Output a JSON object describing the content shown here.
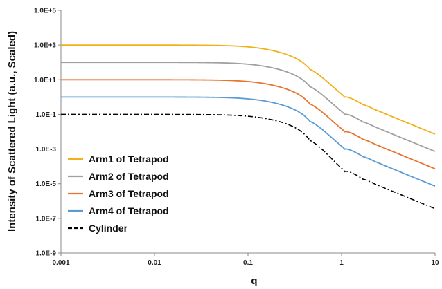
{
  "chart_data": {
    "type": "line",
    "title": "",
    "xlabel": "q",
    "ylabel": "Intensity of Scattered Light (a.u., Scaled)",
    "xscale": "log",
    "yscale": "log",
    "xlim": [
      0.001,
      10
    ],
    "ylim": [
      1e-09,
      100000
    ],
    "grid": false,
    "legend_position": "bottom-left",
    "x_ticks": [
      {
        "value": 0.001,
        "label": "0.001"
      },
      {
        "value": 0.01,
        "label": "0.01"
      },
      {
        "value": 0.1,
        "label": "0.1"
      },
      {
        "value": 1,
        "label": "1"
      },
      {
        "value": 10,
        "label": "10"
      }
    ],
    "y_ticks": [
      {
        "value": 1e-09,
        "label": "1.0E-9"
      },
      {
        "value": 1e-07,
        "label": "1.0E-7"
      },
      {
        "value": 1e-05,
        "label": "1.0E-5"
      },
      {
        "value": 0.001,
        "label": "1.0E-3"
      },
      {
        "value": 0.1,
        "label": "1.0E-1"
      },
      {
        "value": 10,
        "label": "1.0E+1"
      },
      {
        "value": 1000,
        "label": "1.0E+3"
      },
      {
        "value": 100000,
        "label": "1.0E+5"
      }
    ],
    "series": [
      {
        "name": "Arm1 of Tetrapod",
        "color": "#f2b11b",
        "dash": "solid",
        "plateau": 1000,
        "first_min_depth": 1.3
      },
      {
        "name": "Arm2 of Tetrapod",
        "color": "#a0a0a0",
        "dash": "solid",
        "plateau": 100,
        "first_min_depth": 1.3
      },
      {
        "name": "Arm3 of Tetrapod",
        "color": "#e8732c",
        "dash": "solid",
        "plateau": 10,
        "first_min_depth": 1.3
      },
      {
        "name": "Arm4 of Tetrapod",
        "color": "#5b9bd5",
        "dash": "solid",
        "plateau": 1,
        "first_min_depth": 1.3
      },
      {
        "name": "Cylinder",
        "color": "#000000",
        "dash": "dashdot",
        "plateau": 0.1,
        "first_min_depth": 1.6
      }
    ]
  }
}
